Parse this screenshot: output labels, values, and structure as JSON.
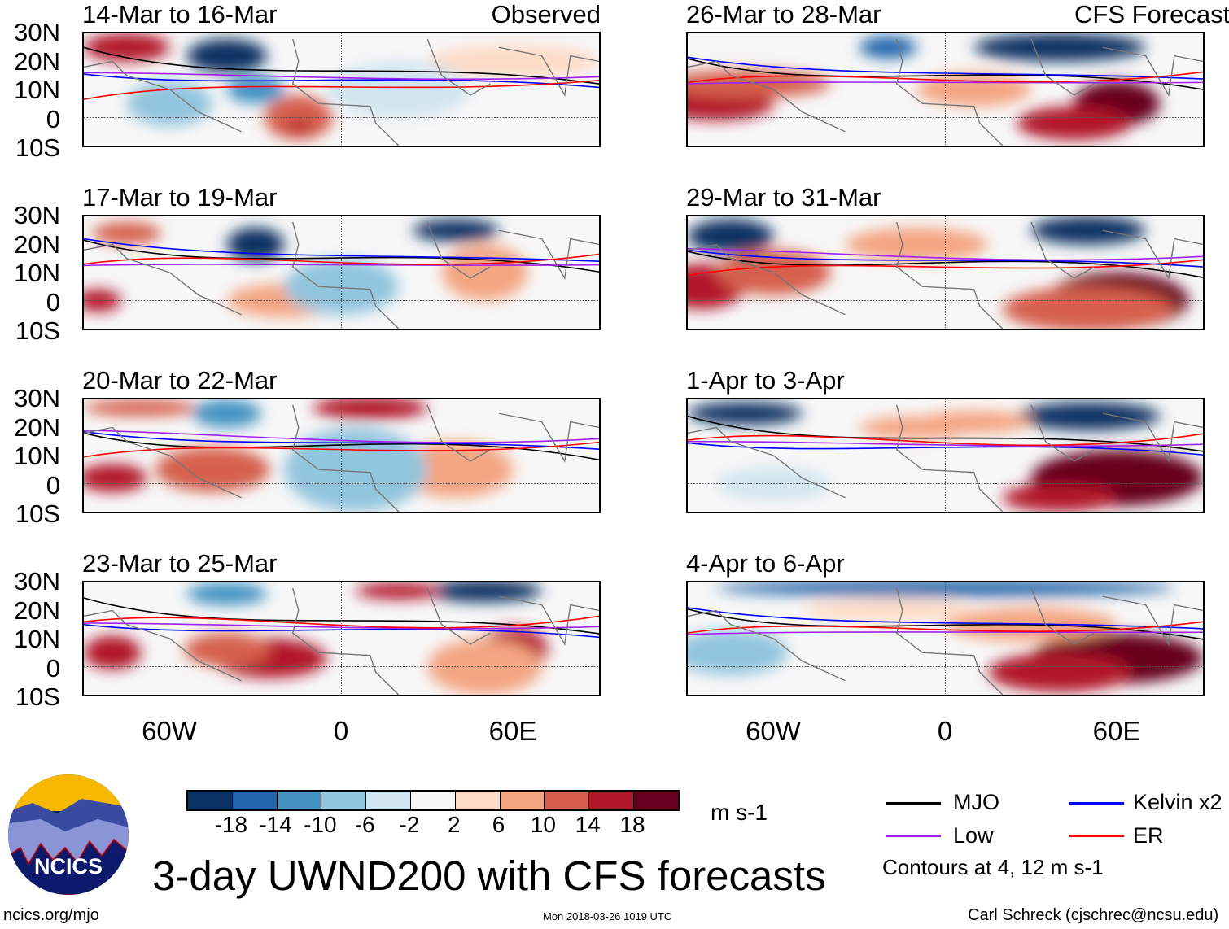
{
  "left_column": {
    "label": "Observed",
    "panels": [
      "14-Mar to 16-Mar",
      "17-Mar to 19-Mar",
      "20-Mar to 22-Mar",
      "23-Mar to 25-Mar"
    ]
  },
  "right_column": {
    "label": "CFS Forecast",
    "panels": [
      "26-Mar to 28-Mar",
      "29-Mar to 31-Mar",
      "1-Apr to 3-Apr",
      "4-Apr to 6-Apr"
    ]
  },
  "lat_labels": [
    "30N",
    "20N",
    "10N",
    "0",
    "10S"
  ],
  "lon_labels": [
    "60W",
    "0",
    "60E"
  ],
  "colorbar": {
    "levels": [
      "-18",
      "-14",
      "-10",
      "-6",
      "-2",
      "2",
      "6",
      "10",
      "14",
      "18"
    ],
    "colors": [
      "#0a3264",
      "#2166ac",
      "#4393c3",
      "#92c5de",
      "#d1e5f0",
      "#f7f7f7",
      "#fddbc7",
      "#f4a582",
      "#d6604d",
      "#b2182b",
      "#67001f"
    ],
    "units": "m s-1"
  },
  "legend": {
    "items": [
      {
        "label": "MJO",
        "color": "#000000"
      },
      {
        "label": "Kelvin x2",
        "color": "#0000ff"
      },
      {
        "label": "Low",
        "color": "#a020f0"
      },
      {
        "label": "ER",
        "color": "#ff0000"
      }
    ],
    "note": "Contours at 4, 12 m s-1"
  },
  "logo_text": "NCICS",
  "title": "3-day UWND200 with CFS forecasts",
  "footer": {
    "url": "ncics.org/mjo",
    "timestamp": "Mon 2018-03-26 1019 UTC",
    "author": "Carl Schreck (cjschrec@ncsu.edu)"
  }
}
